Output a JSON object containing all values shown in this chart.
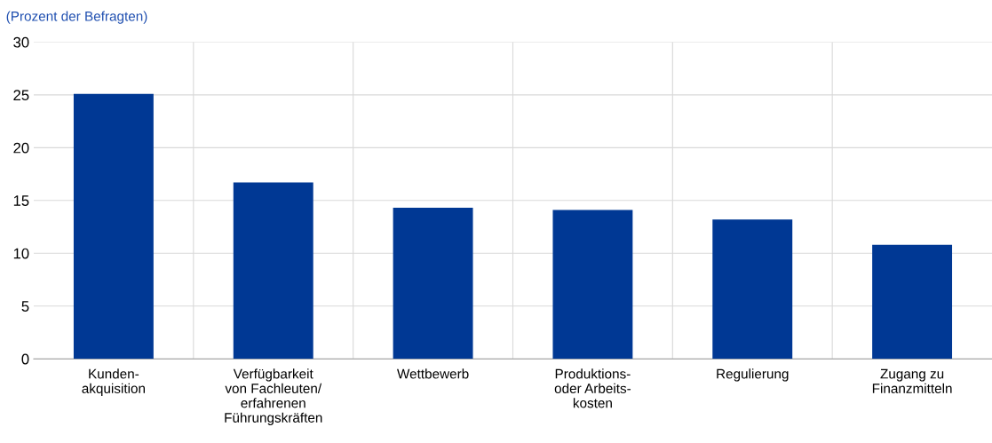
{
  "chart_data": {
    "type": "bar",
    "ylabel": "(Prozent der Befragten)",
    "categories": [
      "Kunden-\nakquisition",
      "Verfügbarkeit\nvon Fachleuten/\nerfahrenen\nFührungskräften",
      "Wettbewerb",
      "Produktions-\noder Arbeits-\nkosten",
      "Regulierung",
      "Zugang zu\nFinanzmitteln"
    ],
    "values": [
      25.1,
      16.7,
      14.3,
      14.1,
      13.2,
      10.8
    ],
    "color": "#003894",
    "ylim": [
      0,
      30
    ],
    "yticks": [
      0,
      5,
      10,
      15,
      20,
      25,
      30
    ],
    "grid": true
  }
}
